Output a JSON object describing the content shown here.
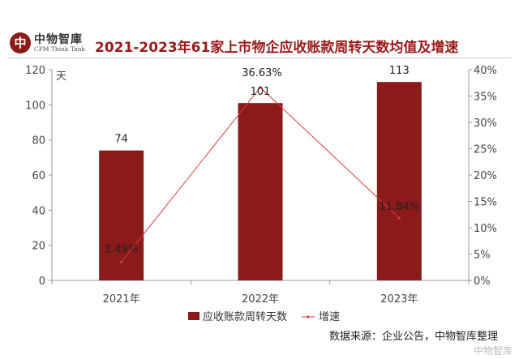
{
  "logo": {
    "mark": "中",
    "cn": "中物智庫",
    "en": "CPM Think Tank"
  },
  "title": "2021-2023年61家上市物企应收账款周转天数均值及增速",
  "chart_data": {
    "type": "bar",
    "title": "2021-2023年61家上市物企应收账款周转天数均值及增速",
    "categories": [
      "2021年",
      "2022年",
      "2023年"
    ],
    "series": [
      {
        "name": "应收账款周转天数",
        "type": "bar",
        "axis": "left",
        "values": [
          74,
          101,
          113
        ],
        "labels": [
          "74",
          "101",
          "113"
        ],
        "color": "#8b1a1a"
      },
      {
        "name": "增速",
        "type": "line",
        "axis": "right",
        "values": [
          3.49,
          36.63,
          11.84
        ],
        "labels": [
          "3.49%",
          "36.63%",
          "11.84%"
        ],
        "color": "#e03a3a"
      }
    ],
    "ylabel": "天",
    "ylim": [
      0,
      120
    ],
    "yticks": [
      "0",
      "20",
      "40",
      "60",
      "80",
      "100",
      "120"
    ],
    "y2lim": [
      0,
      40
    ],
    "y2ticks": [
      "0%",
      "5%",
      "10%",
      "15%",
      "20%",
      "25%",
      "30%",
      "35%",
      "40%"
    ],
    "grid": false,
    "legend": "bottom"
  },
  "source": "数据来源：企业公告，中物智库整理",
  "watermark": "中物智库"
}
